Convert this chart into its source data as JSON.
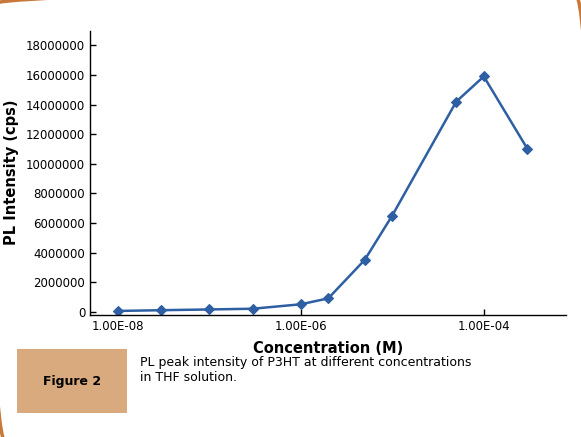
{
  "x": [
    1e-08,
    3e-08,
    1e-07,
    3e-07,
    1e-06,
    2e-06,
    5e-06,
    1e-05,
    5e-05,
    0.0001,
    0.0003
  ],
  "y": [
    50000,
    100000,
    150000,
    200000,
    500000,
    900000,
    3500000,
    6500000,
    14200000,
    15900000,
    11000000
  ],
  "line_color": "#2E5FA3",
  "marker": "D",
  "marker_size": 5,
  "xlabel": "Concentration (M)",
  "ylabel": "PL Intensity (cps)",
  "xlim_low": 5e-09,
  "xlim_high": 0.0008,
  "ylim": [
    -200000,
    19000000
  ],
  "yticks": [
    0,
    2000000,
    4000000,
    6000000,
    8000000,
    10000000,
    12000000,
    14000000,
    16000000,
    18000000
  ],
  "xtick_labels": [
    "1.00E-08",
    "1.00E-06",
    "1.00E-04"
  ],
  "xtick_positions": [
    1e-08,
    1e-06,
    0.0001
  ],
  "bg_color": "#FFFFFF",
  "border_color": "#C8793A",
  "figure_label": "Figure 2",
  "figure_caption": "PL peak intensity of P3HT at different concentrations\nin THF solution.",
  "label_bg": "#D9AA7E",
  "label_text_color": "#000000"
}
